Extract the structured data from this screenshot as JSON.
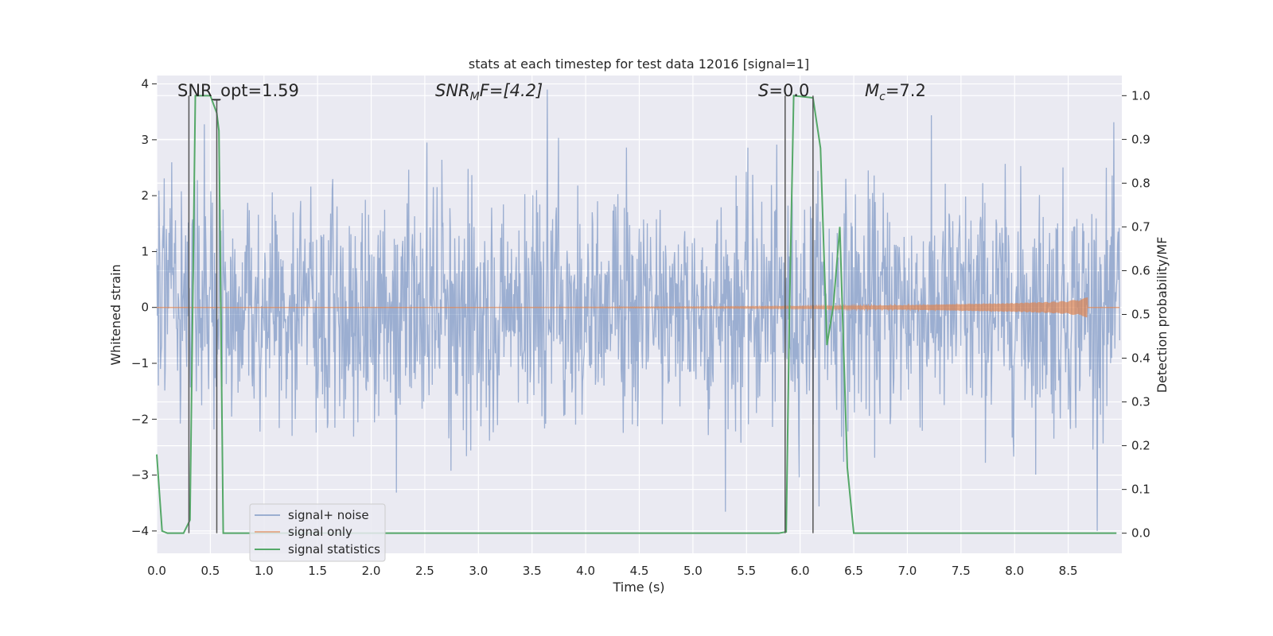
{
  "chart_data": {
    "type": "line",
    "title": "stats at each timestep for test data 12016 [signal=1]",
    "xlabel": "Time (s)",
    "ylabel": "Whitened strain",
    "y2label": "Detection probability/MF",
    "xlim": [
      0,
      9
    ],
    "ylim": [
      -4.4,
      4.15
    ],
    "y2lim": [
      -0.046,
      1.046
    ],
    "x_ticks": [
      "0.0",
      "0.5",
      "1.0",
      "1.5",
      "2.0",
      "2.5",
      "3.0",
      "3.5",
      "4.0",
      "4.5",
      "5.0",
      "5.5",
      "6.0",
      "6.5",
      "7.0",
      "7.5",
      "8.0",
      "8.5"
    ],
    "y_ticks": [
      "4",
      "3",
      "2",
      "1",
      "0",
      "−1",
      "−2",
      "−3",
      "−4"
    ],
    "y2_ticks": [
      "1.0",
      "0.9",
      "0.8",
      "0.7",
      "0.6",
      "0.5",
      "0.4",
      "0.3",
      "0.2",
      "0.1",
      "0.0"
    ],
    "grid": true,
    "legend_position": "lower left",
    "annotations": {
      "snr_opt": "SNR_opt=1.59",
      "snr_mf": "SNR",
      "snr_mf_sub": "M",
      "snr_mf_rest": "F=[4.2]",
      "s_stat": "S=0.0",
      "mc": "M",
      "mc_sub": "c",
      "mc_rest": "=7.2"
    },
    "series": [
      {
        "name": "signal+ noise",
        "color": "#4c72b0",
        "description_range": [
          -4.0,
          3.9
        ]
      },
      {
        "name": "signal only",
        "color": "#dd8452",
        "envelope": {
          "x": [
            0.0,
            3.0,
            5.0,
            6.0,
            7.0,
            7.5,
            8.0,
            8.3,
            8.5,
            8.6,
            8.68
          ],
          "amp": [
            0.0,
            0.0,
            0.01,
            0.02,
            0.04,
            0.06,
            0.08,
            0.1,
            0.12,
            0.15,
            0.18
          ]
        }
      },
      {
        "name": "signal statistics",
        "color": "#55a868",
        "x": [
          0.0,
          0.05,
          0.1,
          0.25,
          0.31,
          0.36,
          0.38,
          0.5,
          0.56,
          0.58,
          0.62,
          0.65,
          5.8,
          5.87,
          5.9,
          5.94,
          6.12,
          6.19,
          6.25,
          6.31,
          6.37,
          6.44,
          6.5,
          6.55,
          8.95
        ],
        "y": [
          0.18,
          0.005,
          0.0,
          0.0,
          0.03,
          1.0,
          1.0,
          1.0,
          0.96,
          0.92,
          0.0,
          0.0,
          0.0,
          0.003,
          0.5,
          1.0,
          0.995,
          0.88,
          0.43,
          0.52,
          0.7,
          0.15,
          0.0,
          0.0,
          0.0
        ]
      }
    ],
    "vlines": [
      {
        "x": 0.3,
        "y2_from": 0.0,
        "y2_to": 1.0
      },
      {
        "x": 0.56,
        "y2_from": 0.0,
        "y2_to": 0.99
      },
      {
        "x": 5.86,
        "y2_from": 0.0,
        "y2_to": 1.0
      },
      {
        "x": 6.12,
        "y2_from": 0.0,
        "y2_to": 1.0
      }
    ],
    "hlines_y2": [
      0.99
    ],
    "hline_segments": [
      {
        "x_from": 0.53,
        "x_to": 0.59,
        "y2": 0.99
      }
    ]
  }
}
